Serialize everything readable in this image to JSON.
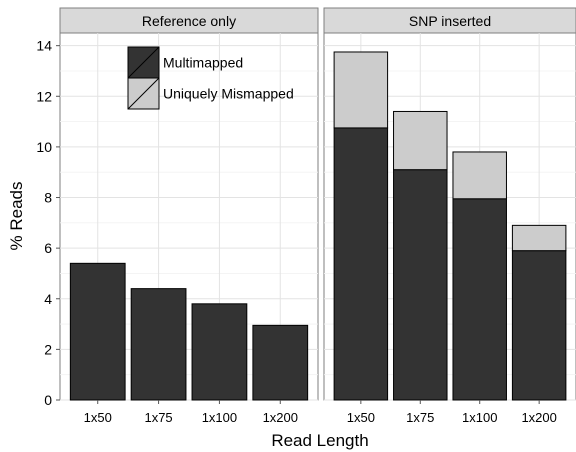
{
  "chart_data": {
    "type": "bar",
    "stacked": true,
    "xlabel": "Read Length",
    "ylabel": "% Reads",
    "ylim": [
      0,
      14.5
    ],
    "yticks": [
      0,
      2,
      4,
      6,
      8,
      10,
      12,
      14
    ],
    "categories": [
      "1x50",
      "1x75",
      "1x100",
      "1x200"
    ],
    "legend": {
      "placement": "top-left inside first panel",
      "entries": [
        {
          "name": "Multimapped",
          "color": "#333333"
        },
        {
          "name": "Uniquely Mismapped",
          "color": "#cccccc"
        }
      ]
    },
    "grid": true,
    "panels": [
      {
        "title": "Reference only",
        "series": [
          {
            "name": "Multimapped",
            "values": [
              5.4,
              4.4,
              3.8,
              2.95
            ]
          },
          {
            "name": "Uniquely Mismapped",
            "values": [
              0,
              0,
              0,
              0
            ]
          }
        ]
      },
      {
        "title": "SNP inserted",
        "series": [
          {
            "name": "Multimapped",
            "values": [
              10.75,
              9.1,
              7.95,
              5.9
            ]
          },
          {
            "name": "Uniquely Mismapped",
            "values": [
              3.0,
              2.3,
              1.85,
              1.0
            ]
          }
        ]
      }
    ]
  }
}
